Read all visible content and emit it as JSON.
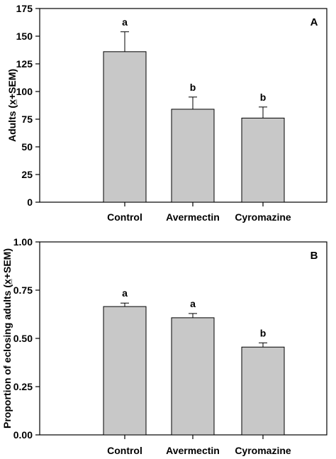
{
  "chart_data": [
    {
      "type": "bar",
      "panel_label": "A",
      "ylabel": "Adults (x̲+SEM)",
      "categories": [
        "Control",
        "Avermectin",
        "Cyromazine"
      ],
      "values": [
        136,
        84,
        76
      ],
      "errors": [
        18,
        11,
        10
      ],
      "significance": [
        "a",
        "b",
        "b"
      ],
      "ylim": [
        0,
        175
      ],
      "yticks": [
        "0",
        "25",
        "50",
        "75",
        "100",
        "125",
        "150",
        "175"
      ],
      "bar_color": "#c8c8c8",
      "grid": false
    },
    {
      "type": "bar",
      "panel_label": "B",
      "ylabel": "Proportion of eclosing adults (x̲+SEM)",
      "categories": [
        "Control",
        "Avermectin",
        "Cyromazine"
      ],
      "values": [
        0.665,
        0.607,
        0.455
      ],
      "errors": [
        0.018,
        0.022,
        0.022
      ],
      "significance": [
        "a",
        "a",
        "b"
      ],
      "ylim": [
        0,
        1.0
      ],
      "yticks": [
        "0.00",
        "0.25",
        "0.50",
        "0.75",
        "1.00"
      ],
      "bar_color": "#c8c8c8",
      "grid": false
    }
  ]
}
